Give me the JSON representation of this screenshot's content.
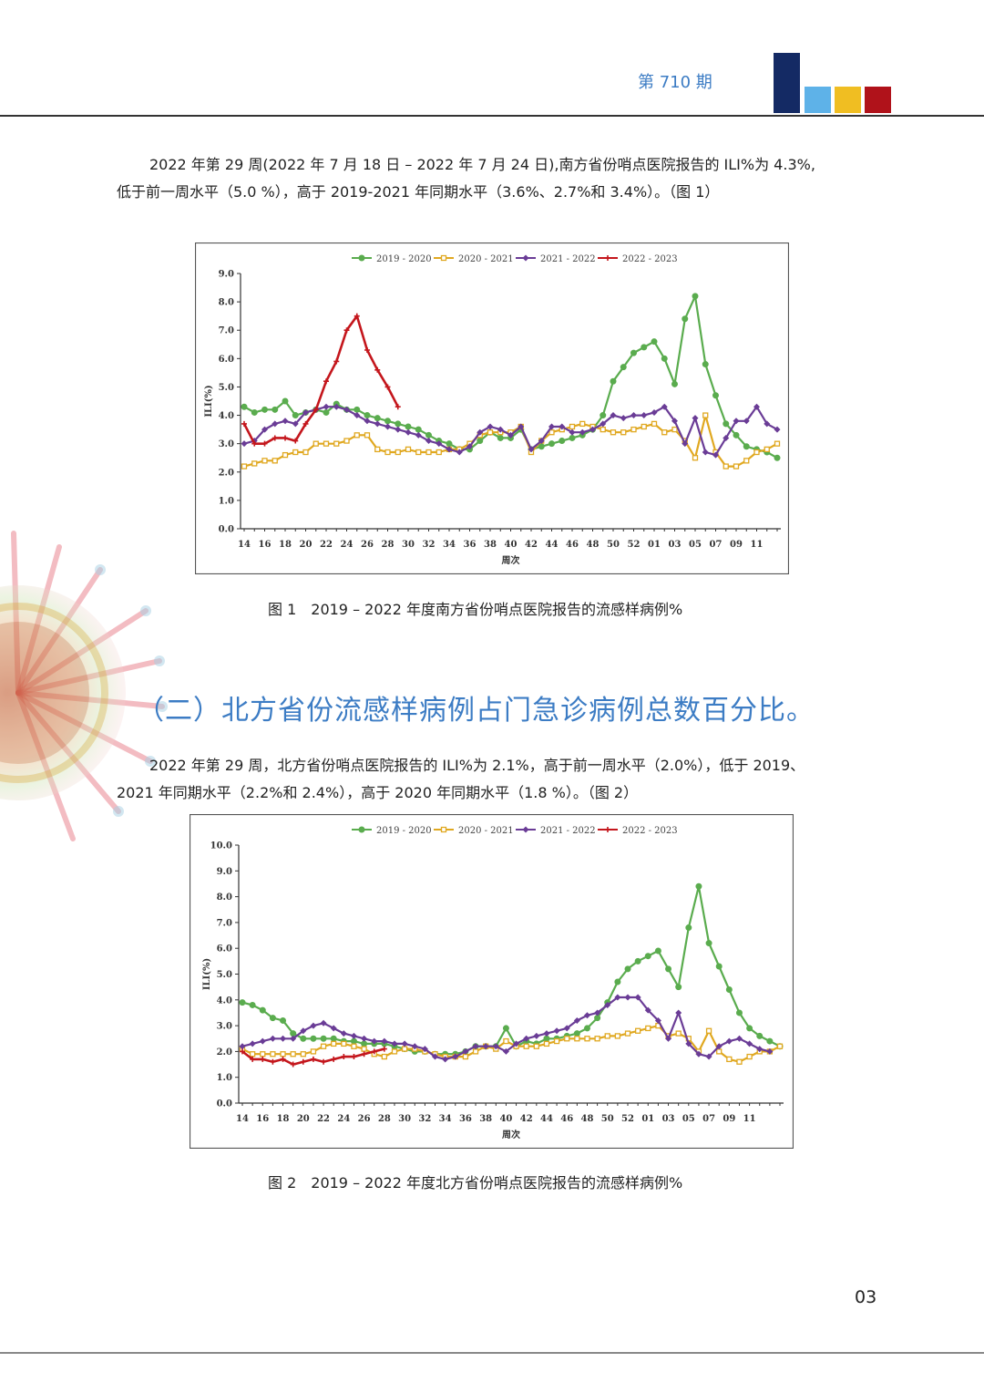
{
  "header": {
    "issue_label": "第 710 期",
    "block_colors": [
      "#142a64",
      "#5eb2e8",
      "#f0be22",
      "#b0121a"
    ]
  },
  "paragraph_south": {
    "line1": "2022 年第 29 周(2022 年 7 月 18 日 – 2022 年 7 月 24 日),南方省份哨点医院报告的 ILI%为 4.3%,",
    "line2": "低于前一周水平（5.0 %），高于 2019-2021 年同期水平（3.6%、2.7%和 3.4%）。（图 1）"
  },
  "figure1": {
    "caption": "图 1　2019 – 2022 年度南方省份哨点医院报告的流感样病例%"
  },
  "section_heading": "（二）北方省份流感样病例占门急诊病例总数百分比。",
  "paragraph_north": {
    "line1": "2022 年第 29 周，北方省份哨点医院报告的 ILI%为 2.1%，高于前一周水平（2.0%），低于 2019、",
    "line2": "2021 年同期水平（2.2%和 2.4%），高于 2020 年同期水平（1.8 %）。（图 2）"
  },
  "figure2": {
    "caption": "图 2　2019 – 2022 年度北方省份哨点医院报告的流感样病例%"
  },
  "page_number": "03",
  "chart_data": [
    {
      "type": "line",
      "ylabel": "ILI(%)",
      "xlabel": "周次",
      "ylim": [
        0,
        9
      ],
      "ytick_labels": [
        "0.0",
        "1.0",
        "2.0",
        "3.0",
        "4.0",
        "5.0",
        "6.0",
        "7.0",
        "8.0",
        "9.0"
      ],
      "xtick_labels": [
        "14",
        "16",
        "18",
        "20",
        "22",
        "24",
        "26",
        "28",
        "30",
        "32",
        "34",
        "36",
        "38",
        "40",
        "42",
        "44",
        "46",
        "48",
        "50",
        "52",
        "01",
        "03",
        "05",
        "07",
        "09",
        "11"
      ],
      "legend_position": "top",
      "grid": false,
      "series": [
        {
          "name": "2019 - 2020",
          "color": "#5aac4e",
          "marker": "circle",
          "values": [
            4.3,
            4.1,
            4.2,
            4.2,
            4.5,
            4.0,
            4.1,
            4.2,
            4.1,
            4.4,
            4.2,
            4.2,
            4.0,
            3.9,
            3.8,
            3.7,
            3.6,
            3.5,
            3.3,
            3.1,
            3.0,
            2.8,
            2.8,
            3.1,
            3.4,
            3.2,
            3.2,
            3.5,
            2.8,
            2.9,
            3.0,
            3.1,
            3.2,
            3.3,
            3.5,
            4.0,
            5.2,
            5.7,
            6.2,
            6.4,
            6.6,
            6.0,
            5.1,
            7.4,
            8.2,
            5.8,
            4.7,
            3.7,
            3.3,
            2.9,
            2.8,
            2.7,
            2.5
          ]
        },
        {
          "name": "2020 - 2021",
          "color": "#e0a820",
          "marker": "square",
          "values": [
            2.2,
            2.3,
            2.4,
            2.4,
            2.6,
            2.7,
            2.7,
            3.0,
            3.0,
            3.0,
            3.1,
            3.3,
            3.3,
            2.8,
            2.7,
            2.7,
            2.8,
            2.7,
            2.7,
            2.7,
            2.8,
            2.8,
            3.0,
            3.3,
            3.4,
            3.4,
            3.4,
            3.6,
            2.7,
            3.1,
            3.4,
            3.5,
            3.6,
            3.7,
            3.6,
            3.5,
            3.4,
            3.4,
            3.5,
            3.6,
            3.7,
            3.4,
            3.5,
            3.1,
            2.5,
            4.0,
            2.7,
            2.2,
            2.2,
            2.4,
            2.7,
            2.8,
            3.0
          ]
        },
        {
          "name": "2021 - 2022",
          "color": "#6a3c96",
          "marker": "diamond",
          "values": [
            3.0,
            3.1,
            3.5,
            3.7,
            3.8,
            3.7,
            4.1,
            4.2,
            4.3,
            4.3,
            4.2,
            4.0,
            3.8,
            3.7,
            3.6,
            3.5,
            3.4,
            3.3,
            3.1,
            3.0,
            2.8,
            2.7,
            2.9,
            3.4,
            3.6,
            3.5,
            3.3,
            3.6,
            2.8,
            3.1,
            3.6,
            3.6,
            3.4,
            3.4,
            3.5,
            3.7,
            4.0,
            3.9,
            4.0,
            4.0,
            4.1,
            4.3,
            3.8,
            3.0,
            3.9,
            2.7,
            2.6,
            3.2,
            3.8,
            3.8,
            4.3,
            3.7,
            3.5
          ]
        },
        {
          "name": "2022 - 2023",
          "color": "#c4161c",
          "marker": "plus",
          "values": [
            3.7,
            3.0,
            3.0,
            3.2,
            3.2,
            3.1,
            3.7,
            4.2,
            5.2,
            5.9,
            7.0,
            7.5,
            6.3,
            5.6,
            5.0,
            4.3
          ]
        }
      ]
    },
    {
      "type": "line",
      "ylabel": "ILI(%)",
      "xlabel": "周次",
      "ylim": [
        0,
        10
      ],
      "ytick_labels": [
        "0.0",
        "1.0",
        "2.0",
        "3.0",
        "4.0",
        "5.0",
        "6.0",
        "7.0",
        "8.0",
        "9.0",
        "10.0"
      ],
      "xtick_labels": [
        "14",
        "16",
        "18",
        "20",
        "22",
        "24",
        "26",
        "28",
        "30",
        "32",
        "34",
        "36",
        "38",
        "40",
        "42",
        "44",
        "46",
        "48",
        "50",
        "52",
        "01",
        "03",
        "05",
        "07",
        "09",
        "11"
      ],
      "legend_position": "top",
      "grid": false,
      "series": [
        {
          "name": "2019 - 2020",
          "color": "#5aac4e",
          "marker": "circle",
          "values": [
            3.9,
            3.8,
            3.6,
            3.3,
            3.2,
            2.7,
            2.5,
            2.5,
            2.5,
            2.5,
            2.4,
            2.4,
            2.3,
            2.3,
            2.3,
            2.2,
            2.1,
            2.0,
            2.0,
            1.9,
            1.9,
            1.9,
            2.0,
            2.2,
            2.2,
            2.2,
            2.9,
            2.2,
            2.4,
            2.3,
            2.5,
            2.5,
            2.6,
            2.7,
            2.9,
            3.3,
            3.9,
            4.7,
            5.2,
            5.5,
            5.7,
            5.9,
            5.2,
            4.5,
            6.8,
            8.4,
            6.2,
            5.3,
            4.4,
            3.5,
            2.9,
            2.6,
            2.4,
            2.2
          ]
        },
        {
          "name": "2020 - 2021",
          "color": "#e0a820",
          "marker": "square",
          "values": [
            2.1,
            1.9,
            1.9,
            1.9,
            1.9,
            1.9,
            1.9,
            2.0,
            2.2,
            2.3,
            2.3,
            2.2,
            2.1,
            1.9,
            1.8,
            2.0,
            2.1,
            2.1,
            2.0,
            1.9,
            1.8,
            1.8,
            1.8,
            2.0,
            2.2,
            2.1,
            2.4,
            2.2,
            2.2,
            2.2,
            2.3,
            2.4,
            2.5,
            2.5,
            2.5,
            2.5,
            2.6,
            2.6,
            2.7,
            2.8,
            2.9,
            3.0,
            2.6,
            2.7,
            2.5,
            2.0,
            2.8,
            2.0,
            1.7,
            1.6,
            1.8,
            2.0,
            2.0,
            2.2
          ]
        },
        {
          "name": "2021 - 2022",
          "color": "#6a3c96",
          "marker": "diamond",
          "values": [
            2.2,
            2.3,
            2.4,
            2.5,
            2.5,
            2.5,
            2.8,
            3.0,
            3.1,
            2.9,
            2.7,
            2.6,
            2.5,
            2.4,
            2.4,
            2.3,
            2.3,
            2.2,
            2.1,
            1.8,
            1.7,
            1.8,
            2.0,
            2.2,
            2.2,
            2.2,
            2.0,
            2.3,
            2.5,
            2.6,
            2.7,
            2.8,
            2.9,
            3.2,
            3.4,
            3.5,
            3.8,
            4.1,
            4.1,
            4.1,
            3.6,
            3.2,
            2.5,
            3.5,
            2.3,
            1.9,
            1.8,
            2.2,
            2.4,
            2.5,
            2.3,
            2.1,
            2.0
          ]
        },
        {
          "name": "2022 - 2023",
          "color": "#c4161c",
          "marker": "plus",
          "values": [
            2.0,
            1.7,
            1.7,
            1.6,
            1.7,
            1.5,
            1.6,
            1.7,
            1.6,
            1.7,
            1.8,
            1.8,
            1.9,
            2.0,
            2.1
          ]
        }
      ]
    }
  ]
}
